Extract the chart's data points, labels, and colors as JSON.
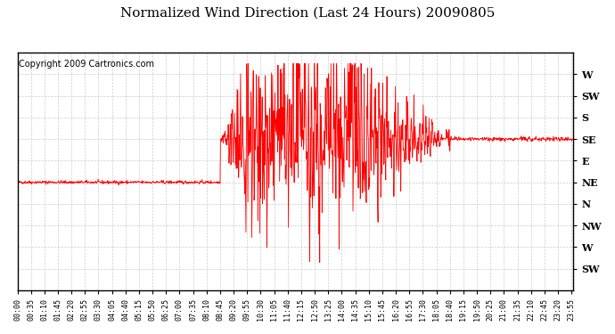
{
  "title": "Normalized Wind Direction (Last 24 Hours) 20090805",
  "copyright": "Copyright 2009 Cartronics.com",
  "line_color": "#FF0000",
  "bg_color": "#FFFFFF",
  "grid_color": "#CCCCCC",
  "ytick_labels": [
    "W",
    "SW",
    "S",
    "SE",
    "E",
    "NE",
    "N",
    "NW",
    "W",
    "SW"
  ],
  "ytick_values": [
    8,
    7,
    6,
    5,
    4,
    3,
    2,
    1,
    0,
    -1
  ],
  "ylim": [
    -2,
    9
  ],
  "xlim_minutes": [
    0,
    1440
  ],
  "xtick_step_minutes": 35,
  "flat_val_early": 3.0,
  "flat_val_late": 5.0,
  "flat_early_end_minutes": 525,
  "turbulent_start_minutes": 525,
  "turbulent_end_minutes": 1110,
  "flat_late_start_minutes": 1120
}
